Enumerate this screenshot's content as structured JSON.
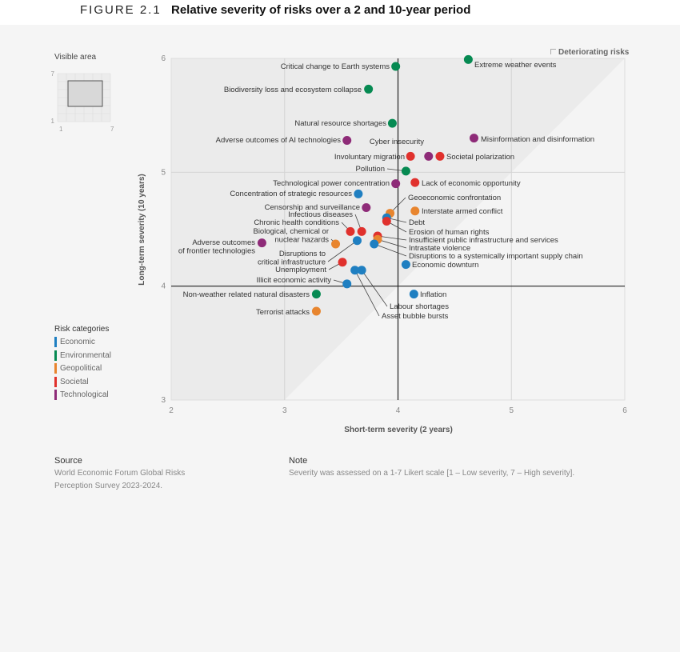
{
  "header": {
    "figure": "FIGURE 2.1",
    "title": "Relative severity of risks over a 2 and 10-year period"
  },
  "minimap": {
    "title": "Visible area",
    "ticks": {
      "y_top": "7",
      "y_bottom": "1",
      "x_left": "1",
      "x_right": "7"
    }
  },
  "legend": {
    "title": "Risk categories",
    "toggle_label": "Deteriorating risks",
    "items": [
      {
        "name": "Economic",
        "color": "#1f7fc1"
      },
      {
        "name": "Environmental",
        "color": "#068a52"
      },
      {
        "name": "Geopolitical",
        "color": "#e8852e"
      },
      {
        "name": "Societal",
        "color": "#e0312d"
      },
      {
        "name": "Technological",
        "color": "#8e2b78"
      }
    ]
  },
  "footer": {
    "source_title": "Source",
    "source_lines": [
      "World Economic Forum Global Risks",
      "Perception Survey 2023-2024."
    ],
    "note_title": "Note",
    "note": "Severity was assessed on a 1-7 Likert scale [1 – Low severity, 7 – High severity]."
  },
  "chart_data": {
    "type": "scatter",
    "xlabel": "Short-term severity (2 years)",
    "ylabel": "Long-term severity (10 years)",
    "xlim": [
      2,
      6
    ],
    "ylim": [
      3,
      6
    ],
    "xticks": [
      "2",
      "3",
      "4",
      "5",
      "6"
    ],
    "yticks": [
      "3",
      "4",
      "5",
      "6"
    ],
    "grid": true,
    "points": [
      {
        "label": [
          "Extreme weather events"
        ],
        "category": "Environmental",
        "x": 4.62,
        "y": 5.99
      },
      {
        "label": [
          "Critical change to Earth systems"
        ],
        "category": "Environmental",
        "x": 3.98,
        "y": 5.93
      },
      {
        "label": [
          "Biodiversity loss and ecosystem collapse"
        ],
        "category": "Environmental",
        "x": 3.74,
        "y": 5.73
      },
      {
        "label": [
          "Natural resource shortages"
        ],
        "category": "Environmental",
        "x": 3.95,
        "y": 5.43
      },
      {
        "label": [
          "Misinformation and disinformation"
        ],
        "category": "Technological",
        "x": 4.67,
        "y": 5.3
      },
      {
        "label": [
          "Adverse outcomes of AI technologies"
        ],
        "category": "Technological",
        "x": 3.55,
        "y": 5.28
      },
      {
        "label": [
          "Cyber insecurity"
        ],
        "category": "Technological",
        "x": 4.27,
        "y": 5.14
      },
      {
        "label": [
          "Societal polarization"
        ],
        "category": "Societal",
        "x": 4.37,
        "y": 5.14
      },
      {
        "label": [
          "Involuntary migration"
        ],
        "category": "Societal",
        "x": 4.11,
        "y": 5.14
      },
      {
        "label": [
          "Pollution"
        ],
        "category": "Environmental",
        "x": 4.07,
        "y": 5.01
      },
      {
        "label": [
          "Lack of economic opportunity"
        ],
        "category": "Societal",
        "x": 4.15,
        "y": 4.91
      },
      {
        "label": [
          "Technological power concentration"
        ],
        "category": "Technological",
        "x": 3.98,
        "y": 4.9
      },
      {
        "label": [
          "Concentration of strategic resources"
        ],
        "category": "Economic",
        "x": 3.65,
        "y": 4.81
      },
      {
        "label": [
          "Censorship and surveillance"
        ],
        "category": "Technological",
        "x": 3.72,
        "y": 4.69
      },
      {
        "label": [
          "Geoeconomic confrontation"
        ],
        "category": "Geopolitical",
        "x": 3.93,
        "y": 4.64
      },
      {
        "label": [
          "Interstate armed conflict"
        ],
        "category": "Geopolitical",
        "x": 4.15,
        "y": 4.66
      },
      {
        "label": [
          "Debt"
        ],
        "category": "Economic",
        "x": 3.9,
        "y": 4.6
      },
      {
        "label": [
          "Erosion of human rights"
        ],
        "category": "Societal",
        "x": 3.9,
        "y": 4.57
      },
      {
        "label": [
          "Infectious diseases"
        ],
        "category": "Societal",
        "x": 3.68,
        "y": 4.48
      },
      {
        "label": [
          "Chronic health conditions"
        ],
        "category": "Societal",
        "x": 3.58,
        "y": 4.48
      },
      {
        "label": [
          "Insufficient public infrastructure and services"
        ],
        "category": "Societal",
        "x": 3.82,
        "y": 4.44
      },
      {
        "label": [
          "Intrastate violence"
        ],
        "category": "Geopolitical",
        "x": 3.82,
        "y": 4.41
      },
      {
        "label": [
          "Disruptions to a systemically important supply chain"
        ],
        "category": "Economic",
        "x": 3.79,
        "y": 4.37
      },
      {
        "label": [
          "Biological, chemical or",
          "nuclear hazards"
        ],
        "category": "Geopolitical",
        "x": 3.45,
        "y": 4.37
      },
      {
        "label": [
          "Disruptions to",
          "critical infrastructure"
        ],
        "category": "Economic",
        "x": 3.64,
        "y": 4.4
      },
      {
        "label": [
          "Adverse outcomes",
          "of frontier technologies"
        ],
        "category": "Technological",
        "x": 2.8,
        "y": 4.38
      },
      {
        "label": [
          "Economic downturn"
        ],
        "category": "Economic",
        "x": 4.07,
        "y": 4.19
      },
      {
        "label": [
          "Unemployment"
        ],
        "category": "Societal",
        "x": 3.51,
        "y": 4.21
      },
      {
        "label": [
          "Labour shortages"
        ],
        "category": "Economic",
        "x": 3.68,
        "y": 4.14
      },
      {
        "label": [
          "Asset bubble bursts"
        ],
        "category": "Economic",
        "x": 3.62,
        "y": 4.14
      },
      {
        "label": [
          "Illicit economic activity"
        ],
        "category": "Economic",
        "x": 3.55,
        "y": 4.02
      },
      {
        "label": [
          "Inflation"
        ],
        "category": "Economic",
        "x": 4.14,
        "y": 3.93
      },
      {
        "label": [
          "Non-weather related natural disasters"
        ],
        "category": "Environmental",
        "x": 3.28,
        "y": 3.93
      },
      {
        "label": [
          "Terrorist attacks"
        ],
        "category": "Geopolitical",
        "x": 3.28,
        "y": 3.78
      }
    ]
  }
}
